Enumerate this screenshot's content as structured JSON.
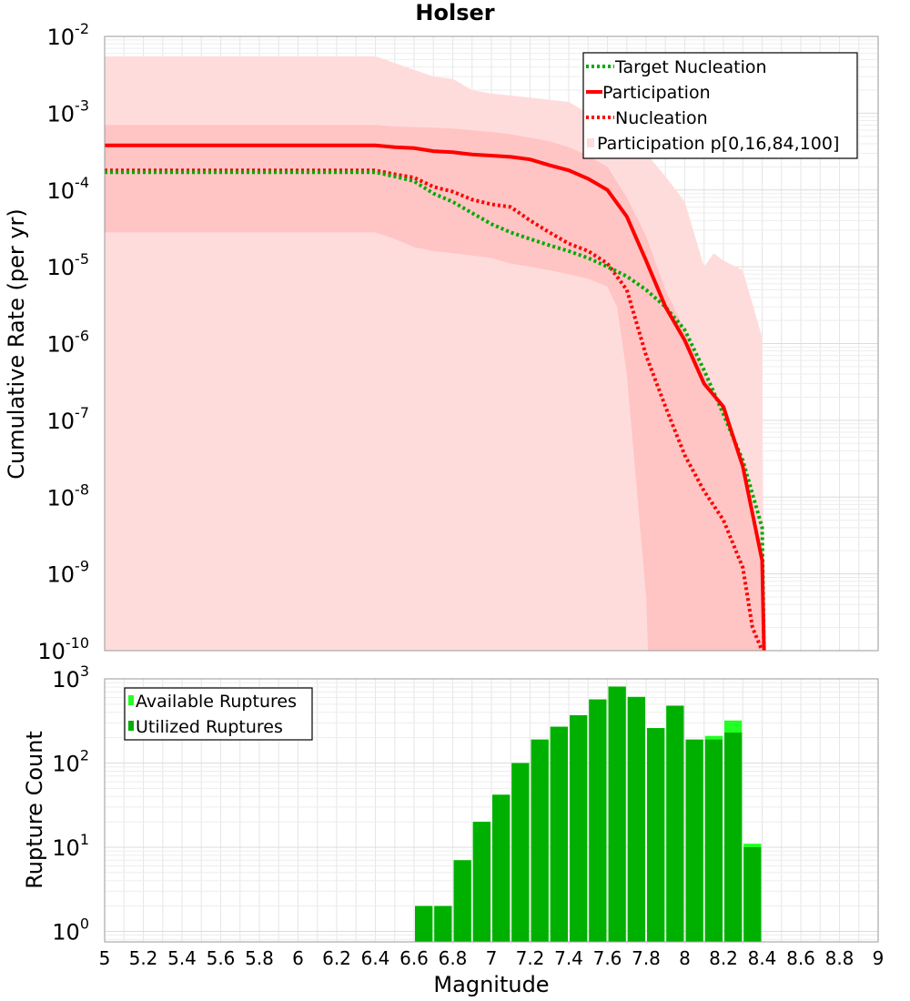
{
  "chart_data": [
    {
      "type": "line",
      "title": "Holser",
      "xlabel": "Magnitude",
      "ylabel": "Cumulative Rate (per yr)",
      "xlim": [
        5,
        9
      ],
      "ylim": [
        1e-10,
        0.01
      ],
      "yscale": "log",
      "grid": true,
      "legend_position": "top-right",
      "legend": [
        "Target Nucleation",
        "Participation",
        "Nucleation",
        "Participation p[0,16,84,100]"
      ],
      "x_ticks": [
        "5",
        "5.2",
        "5.4",
        "5.6",
        "5.8",
        "6",
        "6.2",
        "6.4",
        "6.6",
        "6.8",
        "7",
        "7.2",
        "7.4",
        "7.6",
        "7.8",
        "8",
        "8.2",
        "8.4",
        "8.6",
        "8.8",
        "9"
      ],
      "y_ticks": [
        {
          "base": "10",
          "exp": "-2"
        },
        {
          "base": "10",
          "exp": "-3"
        },
        {
          "base": "10",
          "exp": "-4"
        },
        {
          "base": "10",
          "exp": "-5"
        },
        {
          "base": "10",
          "exp": "-6"
        },
        {
          "base": "10",
          "exp": "-7"
        },
        {
          "base": "10",
          "exp": "-8"
        },
        {
          "base": "10",
          "exp": "-9"
        },
        {
          "base": "10",
          "exp": "-10"
        }
      ],
      "series": [
        {
          "name": "Participation",
          "style": "solid",
          "color": "#ff0000",
          "x": [
            5.0,
            5.5,
            6.0,
            6.4,
            6.5,
            6.6,
            6.7,
            6.8,
            6.9,
            7.0,
            7.1,
            7.2,
            7.3,
            7.4,
            7.5,
            7.6,
            7.7,
            7.8,
            7.9,
            8.0,
            8.1,
            8.2,
            8.3,
            8.4,
            8.41
          ],
          "y": [
            0.00038,
            0.00038,
            0.00038,
            0.00038,
            0.00036,
            0.00035,
            0.00032,
            0.00031,
            0.00029,
            0.00028,
            0.00027,
            0.00025,
            0.00021,
            0.00018,
            0.00014,
            0.0001,
            4.5e-05,
            1.2e-05,
            3e-06,
            1.1e-06,
            3e-07,
            1.5e-07,
            2.5e-08,
            1.5e-09,
            1e-10
          ]
        },
        {
          "name": "Nucleation",
          "style": "dotted",
          "color": "#ff0000",
          "x": [
            5.0,
            6.0,
            6.4,
            6.5,
            6.6,
            6.7,
            6.8,
            6.9,
            7.0,
            7.1,
            7.2,
            7.3,
            7.4,
            7.5,
            7.6,
            7.7,
            7.8,
            7.9,
            8.0,
            8.1,
            8.2,
            8.3,
            8.35,
            8.4
          ],
          "y": [
            0.00018,
            0.00018,
            0.00018,
            0.00016,
            0.000145,
            0.00011,
            9.5e-05,
            7.5e-05,
            6.5e-05,
            6e-05,
            4e-05,
            2.8e-05,
            2e-05,
            1.6e-05,
            1.1e-05,
            5e-06,
            7e-07,
            1.5e-07,
            3.5e-08,
            1.2e-08,
            5e-09,
            1.2e-09,
            2e-10,
            1e-10
          ]
        },
        {
          "name": "Target Nucleation",
          "style": "dotted",
          "color": "#00aa00",
          "x": [
            5.0,
            6.0,
            6.4,
            6.5,
            6.6,
            6.7,
            6.8,
            6.9,
            7.0,
            7.1,
            7.2,
            7.3,
            7.4,
            7.5,
            7.6,
            7.7,
            7.8,
            7.9,
            8.0,
            8.1,
            8.2,
            8.3,
            8.4,
            8.41
          ],
          "y": [
            0.00017,
            0.00017,
            0.00017,
            0.00015,
            0.00013,
            9e-05,
            7e-05,
            5e-05,
            3.6e-05,
            2.8e-05,
            2.3e-05,
            1.9e-05,
            1.6e-05,
            1.3e-05,
            1e-05,
            7.5e-06,
            5e-06,
            3e-06,
            1.5e-06,
            4.5e-07,
            1.2e-07,
            3e-08,
            4e-09,
            1e-10
          ]
        },
        {
          "name": "Participation p[0,16,84,100]",
          "type": "band",
          "outer_upper": {
            "x": [
              5.0,
              6.4,
              6.5,
              6.7,
              6.8,
              6.9,
              7.0,
              7.2,
              7.4,
              7.5,
              7.6,
              7.7,
              7.8,
              7.9,
              8.0,
              8.1,
              8.15,
              8.2,
              8.3,
              8.4,
              8.41
            ],
            "y": [
              0.0055,
              0.0055,
              0.0045,
              0.003,
              0.0028,
              0.002,
              0.0018,
              0.0016,
              0.0014,
              0.001,
              0.0007,
              0.00045,
              0.0003,
              0.00015,
              7e-05,
              1e-05,
              1.5e-05,
              1.2e-05,
              9e-06,
              1.2e-06,
              1e-10
            ]
          },
          "inner_upper": {
            "x": [
              5.0,
              6.4,
              6.5,
              6.7,
              6.8,
              6.9,
              7.0,
              7.1,
              7.2,
              7.3,
              7.4,
              7.5,
              7.6,
              7.7,
              7.8,
              7.9,
              8.0,
              8.1,
              8.2,
              8.3,
              8.4,
              8.41
            ],
            "y": [
              0.0007,
              0.0007,
              0.00067,
              0.00065,
              0.00063,
              0.0006,
              0.00057,
              0.00053,
              0.00048,
              0.00043,
              0.00036,
              0.00028,
              0.0002,
              8e-05,
              2.5e-05,
              5e-06,
              1.5e-06,
              4e-07,
              1.3e-07,
              2e-08,
              1.5e-09,
              1e-10
            ]
          },
          "inner_lower": {
            "x": [
              5.0,
              6.4,
              6.5,
              6.6,
              6.7,
              6.8,
              6.9,
              7.0,
              7.1,
              7.2,
              7.3,
              7.4,
              7.5,
              7.6,
              7.65,
              7.7,
              7.8,
              7.81
            ],
            "y": [
              2.8e-05,
              2.8e-05,
              2.3e-05,
              1.8e-05,
              1.6e-05,
              1.5e-05,
              1.4e-05,
              1.3e-05,
              1.1e-05,
              1e-05,
              9e-06,
              8e-06,
              7e-06,
              5.5e-06,
              3e-06,
              4e-07,
              5e-10,
              1e-10
            ]
          },
          "inner_lower_tail": {
            "x": [
              8.1,
              8.11,
              8.12,
              8.13
            ],
            "y": [
              1e-10,
              1e-10,
              1e-10,
              1e-10
            ]
          }
        }
      ]
    },
    {
      "type": "bar",
      "xlabel": "Magnitude",
      "ylabel": "Rupture Count",
      "xlim": [
        5,
        9
      ],
      "ylim": [
        0.75,
        1000
      ],
      "yscale": "log",
      "grid": true,
      "legend_position": "top-left",
      "legend": [
        "Available Ruptures",
        "Utilized Ruptures"
      ],
      "y_ticks": [
        {
          "base": "10",
          "exp": "3"
        },
        {
          "base": "10",
          "exp": "2"
        },
        {
          "base": "10",
          "exp": "1"
        },
        {
          "base": "10",
          "exp": "0"
        }
      ],
      "bin_width": 0.1,
      "categories": [
        6.65,
        6.75,
        6.85,
        6.95,
        7.05,
        7.15,
        7.25,
        7.35,
        7.45,
        7.55,
        7.65,
        7.75,
        7.85,
        7.95,
        8.05,
        8.15,
        8.25,
        8.35
      ],
      "series": [
        {
          "name": "Available Ruptures",
          "color": "#22ff22",
          "values": [
            2,
            2,
            7,
            20,
            42,
            100,
            190,
            270,
            370,
            570,
            810,
            610,
            260,
            480,
            190,
            210,
            320,
            11
          ]
        },
        {
          "name": "Utilized Ruptures",
          "color": "#00b000",
          "values": [
            2,
            2,
            7,
            20,
            42,
            100,
            190,
            270,
            370,
            570,
            810,
            610,
            260,
            480,
            190,
            190,
            230,
            10
          ]
        }
      ]
    }
  ]
}
